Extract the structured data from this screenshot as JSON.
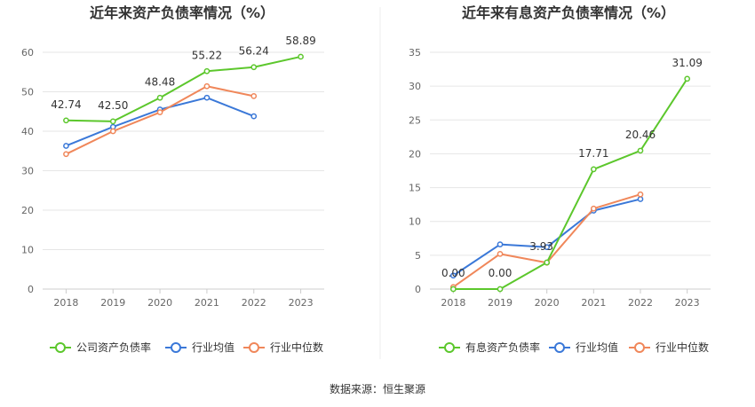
{
  "chart_data": [
    {
      "type": "line",
      "title": "近年来资产负债率情况（%）",
      "x": [
        "2018",
        "2019",
        "2020",
        "2021",
        "2022",
        "2023"
      ],
      "ylim": [
        0,
        60
      ],
      "yticks": [
        "0",
        "10",
        "20",
        "30",
        "40",
        "50",
        "60"
      ],
      "grid": true,
      "legend": "bottom",
      "series": [
        {
          "name": "公司资产负债率",
          "color": "#5cc72c",
          "values": [
            42.74,
            42.5,
            48.48,
            55.22,
            56.24,
            58.89
          ],
          "labels": [
            "42.74",
            "42.50",
            "48.48",
            "55.22",
            "56.24",
            "58.89"
          ]
        },
        {
          "name": "行业均值",
          "color": "#3a78d8",
          "values": [
            36.3,
            41.1,
            45.5,
            48.5,
            43.8,
            null
          ]
        },
        {
          "name": "行业中位数",
          "color": "#f0875a",
          "values": [
            34.2,
            40.0,
            44.8,
            51.4,
            48.9,
            null
          ]
        }
      ]
    },
    {
      "type": "line",
      "title": "近年来有息资产负债率情况（%）",
      "x": [
        "2018",
        "2019",
        "2020",
        "2021",
        "2022",
        "2023"
      ],
      "ylim": [
        0,
        35
      ],
      "yticks": [
        "0",
        "5",
        "10",
        "15",
        "20",
        "25",
        "30",
        "35"
      ],
      "grid": true,
      "legend": "bottom",
      "series": [
        {
          "name": "有息资产负债率",
          "color": "#5cc72c",
          "values": [
            0.0,
            0.0,
            3.93,
            17.71,
            20.46,
            31.09
          ],
          "labels": [
            "0.00",
            "0.00",
            "3.93",
            "17.71",
            "20.46",
            "31.09"
          ]
        },
        {
          "name": "行业均值",
          "color": "#3a78d8",
          "values": [
            2.0,
            6.6,
            6.2,
            11.6,
            13.3,
            null
          ]
        },
        {
          "name": "行业中位数",
          "color": "#f0875a",
          "values": [
            0.3,
            5.2,
            3.9,
            11.9,
            14.0,
            null
          ]
        }
      ]
    }
  ],
  "source": "数据来源：恒生聚源"
}
